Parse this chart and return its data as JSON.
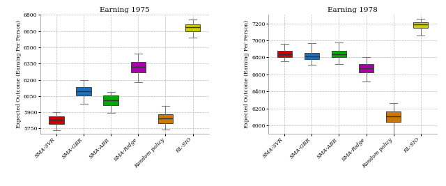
{
  "title1": "Earning 1975",
  "title2": "Earning 1978",
  "ylabel": "Expected Outcome (Earning Per Person)",
  "categories": [
    "SMA-SVR",
    "SMA-GBR",
    "SMA-ABR",
    "SMA-Ridge",
    "Random policy",
    "RL-SIO"
  ],
  "colors": [
    "#cc0000",
    "#1f6fba",
    "#00aa00",
    "#aa00aa",
    "#cc7700",
    "#cccc00"
  ],
  "plot1": {
    "ylim": [
      5700,
      6800
    ],
    "yticks": [
      5750,
      5900,
      6050,
      6200,
      6350,
      6500,
      6650,
      6800
    ],
    "ytick_labels": [
      "5750",
      "5900",
      "6050",
      "6200",
      "6350",
      "6500",
      "6650",
      "6800"
    ],
    "boxes": [
      {
        "med": 5830,
        "q1": 5790,
        "q3": 5865,
        "whislo": 5735,
        "whishi": 5900
      },
      {
        "med": 6095,
        "q1": 6055,
        "q3": 6130,
        "whislo": 5980,
        "whishi": 6200
      },
      {
        "med": 6010,
        "q1": 5965,
        "q3": 6055,
        "whislo": 5895,
        "whishi": 6085
      },
      {
        "med": 6320,
        "q1": 6270,
        "q3": 6365,
        "whislo": 6180,
        "whishi": 6445
      },
      {
        "med": 5845,
        "q1": 5800,
        "q3": 5880,
        "whislo": 5740,
        "whishi": 5960
      },
      {
        "med": 6685,
        "q1": 6645,
        "q3": 6715,
        "whislo": 6590,
        "whishi": 6755
      }
    ]
  },
  "plot2": {
    "ylim": [
      5900,
      7300
    ],
    "yticks": [
      6000,
      6200,
      6400,
      6600,
      6800,
      7000,
      7200
    ],
    "ytick_labels": [
      "6000",
      "6200",
      "6400",
      "6600",
      "6800",
      "7000",
      "7200"
    ],
    "boxes": [
      {
        "med": 6840,
        "q1": 6800,
        "q3": 6875,
        "whislo": 6750,
        "whishi": 6960
      },
      {
        "med": 6815,
        "q1": 6780,
        "q3": 6855,
        "whislo": 6710,
        "whishi": 6970
      },
      {
        "med": 6840,
        "q1": 6800,
        "q3": 6875,
        "whislo": 6720,
        "whishi": 6975
      },
      {
        "med": 6670,
        "q1": 6620,
        "q3": 6720,
        "whislo": 6520,
        "whishi": 6800
      },
      {
        "med": 6105,
        "q1": 6045,
        "q3": 6165,
        "whislo": 5870,
        "whishi": 6265
      },
      {
        "med": 7185,
        "q1": 7145,
        "q3": 7215,
        "whislo": 7055,
        "whishi": 7255
      }
    ]
  },
  "background_color": "#ffffff",
  "grid_color": "#bbbbbb",
  "box_width": 0.55
}
